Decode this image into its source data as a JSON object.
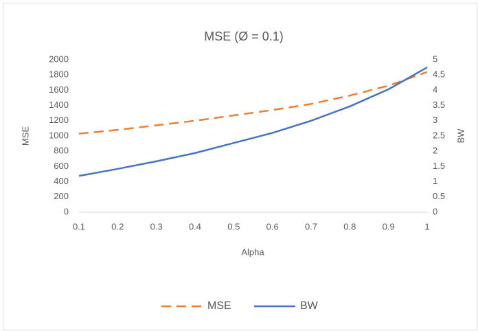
{
  "chart_data": {
    "type": "line",
    "title": "MSE (Ø = 0.1)",
    "x_label": "Alpha",
    "y_label": "MSE",
    "y2_label": "BW",
    "x": [
      0.1,
      0.2,
      0.3,
      0.4,
      0.5,
      0.6,
      0.7,
      0.8,
      0.9,
      1
    ],
    "series": [
      {
        "name": "MSE",
        "color": "#ed7d31",
        "dashed": true,
        "axis": "y",
        "values": [
          1030,
          1080,
          1140,
          1200,
          1270,
          1340,
          1420,
          1530,
          1660,
          1840
        ]
      },
      {
        "name": "BW",
        "color": "#4472c4",
        "dashed": false,
        "axis": "y2",
        "values": [
          1.19,
          1.42,
          1.67,
          1.94,
          2.27,
          2.6,
          3.0,
          3.47,
          4.03,
          4.75
        ]
      }
    ],
    "xlim": [
      0.1,
      1
    ],
    "xticks": [
      0.1,
      0.2,
      0.3,
      0.4,
      0.5,
      0.6,
      0.7,
      0.8,
      0.9,
      1
    ],
    "ylim": [
      0,
      2000
    ],
    "yticks": [
      0,
      200,
      400,
      600,
      800,
      1000,
      1200,
      1400,
      1600,
      1800,
      2000
    ],
    "y2lim": [
      0,
      5
    ],
    "y2ticks": [
      0,
      0.5,
      1,
      1.5,
      2,
      2.5,
      3,
      3.5,
      4,
      4.5,
      5
    ],
    "grid": false,
    "legend": "bottom"
  }
}
